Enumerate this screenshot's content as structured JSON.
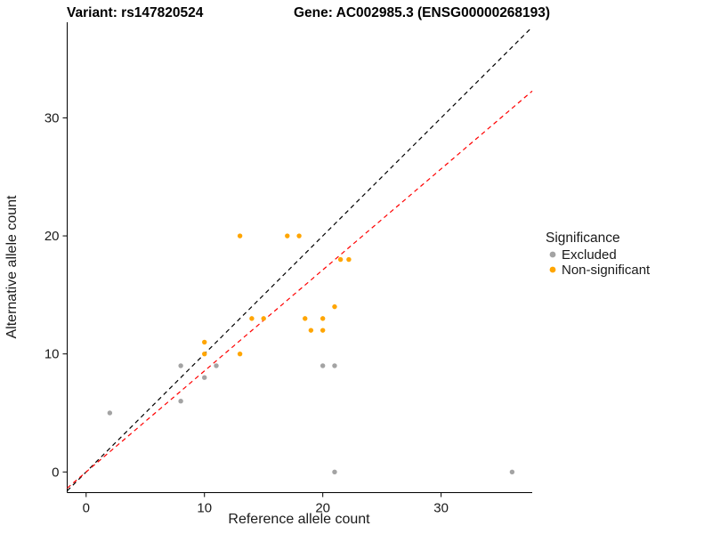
{
  "header": {
    "left_title": "Variant: rs147820524",
    "right_title": "Gene: AC002985.3 (ENSG00000268193)"
  },
  "legend": {
    "title": "Significance",
    "items": [
      {
        "label": "Excluded",
        "color": "#A3A3A3"
      },
      {
        "label": "Non-significant",
        "color": "#FFA500"
      }
    ]
  },
  "chart_data": {
    "type": "scatter",
    "title_left": "Variant: rs147820524",
    "title_right": "Gene: AC002985.3 (ENSG00000268193)",
    "xlabel": "Reference allele count",
    "ylabel": "Alternative allele count",
    "xlim": [
      -1.6,
      37.7
    ],
    "ylim": [
      -1.75,
      38.1
    ],
    "x_ticks": [
      0,
      10,
      20,
      30
    ],
    "y_ticks": [
      0,
      10,
      20,
      30
    ],
    "grid": false,
    "legend_position": "right",
    "series": [
      {
        "name": "Excluded",
        "color": "#A3A3A3",
        "points": [
          [
            2,
            5
          ],
          [
            8,
            6
          ],
          [
            8,
            9
          ],
          [
            10,
            8
          ],
          [
            11,
            9
          ],
          [
            20,
            9
          ],
          [
            21,
            9
          ],
          [
            21,
            0
          ],
          [
            36,
            0
          ]
        ]
      },
      {
        "name": "Non-significant",
        "color": "#FFA500",
        "points": [
          [
            10,
            10
          ],
          [
            10,
            11
          ],
          [
            13,
            10
          ],
          [
            13,
            20
          ],
          [
            14,
            13
          ],
          [
            15,
            13
          ],
          [
            17,
            20
          ],
          [
            18,
            20
          ],
          [
            18.5,
            13
          ],
          [
            19,
            12
          ],
          [
            20,
            12
          ],
          [
            20,
            13
          ],
          [
            21,
            14
          ],
          [
            21.5,
            18
          ],
          [
            22.2,
            18
          ]
        ]
      }
    ],
    "lines": [
      {
        "name": "identity-line",
        "color": "#000000",
        "dash": "5,4",
        "slope": 1,
        "intercept": 0
      },
      {
        "name": "regression-line",
        "color": "#FF0000",
        "dash": "5,4",
        "slope": 0.856,
        "intercept": 0
      }
    ]
  }
}
